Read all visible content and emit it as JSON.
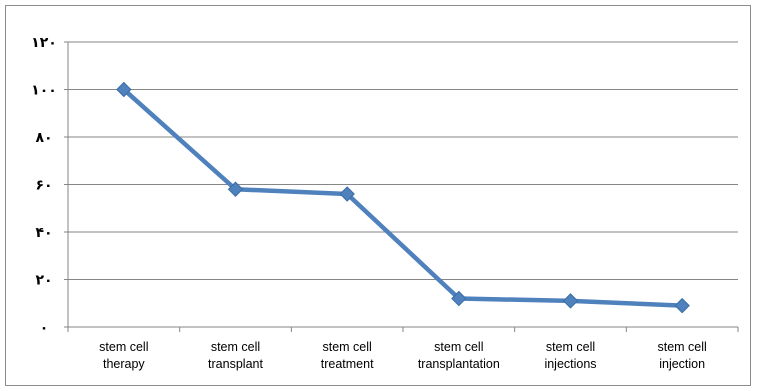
{
  "chart_data": {
    "type": "line",
    "categories": [
      [
        "stem cell",
        "therapy"
      ],
      [
        "stem cell",
        "transplant"
      ],
      [
        "stem cell",
        "treatment"
      ],
      [
        "stem cell",
        "transplantation"
      ],
      [
        "stem cell",
        "injections"
      ],
      [
        "stem cell",
        "injection"
      ]
    ],
    "series": [
      {
        "values": [
          100,
          58,
          56,
          12,
          11,
          9
        ]
      }
    ],
    "ylim": [
      0,
      120
    ],
    "yticks": [
      0,
      20,
      40,
      60,
      80,
      100,
      120
    ],
    "ytick_labels": [
      "۰",
      "۲۰",
      "۴۰",
      "۶۰",
      "۸۰",
      "۱۰۰",
      "۱۲۰"
    ],
    "grid": true,
    "legend": "none",
    "colors": {
      "line": "#4f81bd",
      "marker": "#4f81bd",
      "grid": "#868686",
      "axis": "#868686"
    }
  }
}
